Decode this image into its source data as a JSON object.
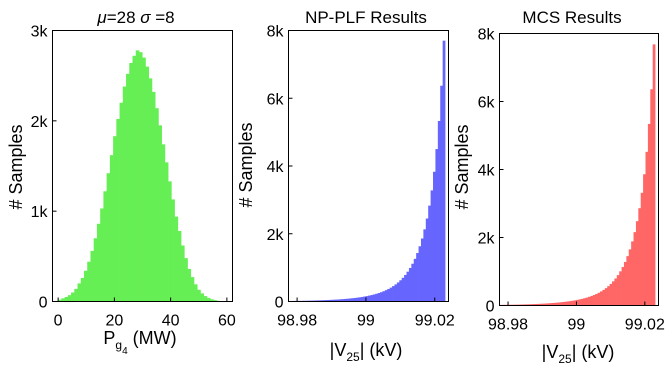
{
  "chart_data": [
    {
      "type": "bar",
      "title_parts": [
        "μ",
        "=28 ",
        "σ",
        " =8"
      ],
      "xlabel_parts": [
        "P",
        "g",
        "4",
        " (MW)"
      ],
      "ylabel": "# Samples",
      "xlim": [
        -2,
        62
      ],
      "ylim": [
        0,
        3000
      ],
      "xticks": [
        0,
        20,
        40,
        60
      ],
      "xtick_labels": [
        "0",
        "20",
        "40",
        "60"
      ],
      "yticks": [
        0,
        1000,
        2000,
        3000
      ],
      "ytick_labels": [
        "0",
        "1k",
        "2k",
        "3k"
      ],
      "color": "#66ee55",
      "bin_width": 1.15,
      "x": [
        0.0,
        1.15,
        2.3,
        3.45,
        4.6,
        5.75,
        6.9,
        8.05,
        9.2,
        10.35,
        11.5,
        12.65,
        13.8,
        14.95,
        16.1,
        17.25,
        18.4,
        19.55,
        20.7,
        21.85,
        23.0,
        24.15,
        25.3,
        26.45,
        27.6,
        28.75,
        29.9,
        31.05,
        32.2,
        33.35,
        34.5,
        35.65,
        36.8,
        37.95,
        39.1,
        40.25,
        41.4,
        42.55,
        43.7,
        44.85,
        46.0,
        47.15,
        48.3,
        49.45,
        50.6,
        51.75,
        52.9,
        54.05,
        55.2,
        56.35
      ],
      "values": [
        20,
        35,
        50,
        70,
        100,
        140,
        200,
        260,
        340,
        440,
        560,
        700,
        860,
        1030,
        1220,
        1420,
        1620,
        1830,
        2020,
        2200,
        2380,
        2520,
        2640,
        2720,
        2780,
        2760,
        2700,
        2600,
        2470,
        2320,
        2140,
        1950,
        1740,
        1540,
        1330,
        1130,
        940,
        780,
        620,
        480,
        360,
        270,
        190,
        130,
        90,
        60,
        40,
        25,
        15,
        8
      ]
    },
    {
      "type": "bar",
      "title": "NP-PLF Results",
      "xlabel_parts": [
        "|V",
        "25",
        "| (kV)"
      ],
      "ylabel": "# Samples",
      "xlim": [
        98.9775,
        99.024
      ],
      "ylim": [
        0,
        8000
      ],
      "xticks": [
        98.98,
        99.0,
        99.02
      ],
      "xtick_labels": [
        "98.98",
        "99",
        "99.02"
      ],
      "yticks": [
        0,
        2000,
        4000,
        6000,
        8000
      ],
      "ytick_labels": [
        "0",
        "2k",
        "4k",
        "6k",
        "8k"
      ],
      "color": "#6666ff",
      "bin_width": 0.0007,
      "x": [
        98.9775,
        98.9782,
        98.9789,
        98.9796,
        98.9803,
        98.981,
        98.9817,
        98.9824,
        98.9831,
        98.9838,
        98.9845,
        98.9852,
        98.9859,
        98.9866,
        98.9873,
        98.988,
        98.9887,
        98.9894,
        98.9901,
        98.9908,
        98.9915,
        98.9922,
        98.9929,
        98.9936,
        98.9943,
        98.995,
        98.9957,
        98.9964,
        98.9971,
        98.9978,
        98.9985,
        98.9992,
        98.9999,
        99.0006,
        99.0013,
        99.002,
        99.0027,
        99.0034,
        99.0041,
        99.0048,
        99.0055,
        99.0062,
        99.0069,
        99.0076,
        99.0083,
        99.009,
        99.0097,
        99.0104,
        99.0111,
        99.0118,
        99.0125,
        99.0132,
        99.0139,
        99.0146,
        99.0153,
        99.016,
        99.0167,
        99.0174,
        99.0181,
        99.0188,
        99.0195,
        99.0202,
        99.0209,
        99.0216,
        99.0223
      ],
      "values": [
        15,
        16,
        17,
        18,
        19,
        20,
        22,
        23,
        25,
        27,
        29,
        31,
        33,
        36,
        38,
        41,
        44,
        48,
        52,
        56,
        60,
        65,
        70,
        76,
        82,
        89,
        96,
        104,
        113,
        123,
        134,
        146,
        159,
        174,
        190,
        208,
        228,
        250,
        275,
        303,
        335,
        370,
        410,
        455,
        505,
        562,
        627,
        700,
        784,
        880,
        990,
        1115,
        1260,
        1430,
        1630,
        1860,
        2130,
        2450,
        2830,
        3280,
        3830,
        4500,
        5330,
        6370,
        7700
      ]
    },
    {
      "type": "bar",
      "title": "MCS Results",
      "xlabel_parts": [
        "|V",
        "25",
        "| (kV)"
      ],
      "ylabel": "# Samples",
      "xlim": [
        98.9775,
        99.024
      ],
      "ylim": [
        0,
        8000
      ],
      "xticks": [
        98.98,
        99.0,
        99.02
      ],
      "xtick_labels": [
        "98.98",
        "99",
        "99.02"
      ],
      "yticks": [
        0,
        2000,
        4000,
        6000,
        8000
      ],
      "ytick_labels": [
        "0",
        "2k",
        "4k",
        "6k",
        "8k"
      ],
      "color": "#ff6666",
      "bin_width": 0.0007,
      "x": [
        98.9775,
        98.9782,
        98.9789,
        98.9796,
        98.9803,
        98.981,
        98.9817,
        98.9824,
        98.9831,
        98.9838,
        98.9845,
        98.9852,
        98.9859,
        98.9866,
        98.9873,
        98.988,
        98.9887,
        98.9894,
        98.9901,
        98.9908,
        98.9915,
        98.9922,
        98.9929,
        98.9936,
        98.9943,
        98.995,
        98.9957,
        98.9964,
        98.9971,
        98.9978,
        98.9985,
        98.9992,
        98.9999,
        99.0006,
        99.0013,
        99.002,
        99.0027,
        99.0034,
        99.0041,
        99.0048,
        99.0055,
        99.0062,
        99.0069,
        99.0076,
        99.0083,
        99.009,
        99.0097,
        99.0104,
        99.0111,
        99.0118,
        99.0125,
        99.0132,
        99.0139,
        99.0146,
        99.0153,
        99.016,
        99.0167,
        99.0174,
        99.0181,
        99.0188,
        99.0195,
        99.0202,
        99.0209,
        99.0216,
        99.0223
      ],
      "values": [
        18,
        19,
        20,
        21,
        22,
        23,
        24,
        26,
        28,
        30,
        32,
        34,
        36,
        39,
        42,
        45,
        48,
        52,
        56,
        60,
        65,
        70,
        75,
        81,
        87,
        94,
        102,
        110,
        119,
        129,
        140,
        152,
        165,
        180,
        196,
        214,
        234,
        256,
        281,
        309,
        340,
        375,
        415,
        460,
        511,
        569,
        635,
        710,
        795,
        893,
        1005,
        1133,
        1281,
        1452,
        1652,
        1885,
        2158,
        2480,
        2862,
        3315,
        3860,
        4520,
        5340,
        6360,
        7680
      ]
    }
  ]
}
